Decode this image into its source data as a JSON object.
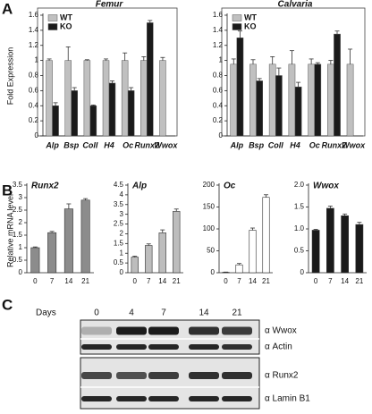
{
  "panel_labels": [
    "A",
    "B",
    "C"
  ],
  "chart_data": [
    {
      "type": "bar",
      "title": "Femur",
      "ylabel": "Fold Expression",
      "frame": true,
      "legend": "upper left",
      "categories": [
        "Alp",
        "Bsp",
        "ColI",
        "H4",
        "Oc",
        "Runx2",
        "Wwox"
      ],
      "series": [
        {
          "name": "WT",
          "color": "#c0c0c0",
          "values": [
            1,
            1,
            1,
            1,
            1,
            1,
            1
          ],
          "errors": [
            0.02,
            0.18,
            0.01,
            0.02,
            0.1,
            0.05,
            0.04
          ]
        },
        {
          "name": "KO",
          "color": "#1a1a1a",
          "values": [
            0.4,
            0.6,
            0.4,
            0.7,
            0.6,
            1.5,
            null
          ],
          "errors": [
            0.04,
            0.04,
            0.01,
            0.03,
            0.04,
            0.03,
            null
          ]
        }
      ],
      "ylim": [
        0,
        1.6
      ],
      "yticks": [
        0,
        0.2,
        0.4,
        0.6,
        0.8,
        1,
        1.2,
        1.4,
        1.6
      ]
    },
    {
      "type": "bar",
      "title": "Calvaria",
      "frame": true,
      "legend": "upper left",
      "categories": [
        "Alp",
        "Bsp",
        "ColI",
        "H4",
        "Oc",
        "Runx2",
        "Wwox"
      ],
      "series": [
        {
          "name": "WT",
          "color": "#c0c0c0",
          "values": [
            0.95,
            0.95,
            0.95,
            0.95,
            0.95,
            0.95,
            0.95
          ],
          "errors": [
            0.07,
            0.06,
            0.1,
            0.18,
            0.07,
            0.05,
            0.2
          ]
        },
        {
          "name": "KO",
          "color": "#1a1a1a",
          "values": [
            1.3,
            0.73,
            0.8,
            0.65,
            0.95,
            1.35,
            null
          ],
          "errors": [
            0.09,
            0.03,
            0.1,
            0.06,
            0.02,
            0.04,
            null
          ]
        }
      ],
      "ylim": [
        0,
        1.6
      ],
      "yticks": [
        0,
        0.2,
        0.4,
        0.6,
        0.8,
        1,
        1.2,
        1.4,
        1.6
      ]
    },
    {
      "type": "bar",
      "title": "Runx2",
      "ylabel": "Relative mRNA level",
      "categories": [
        "0",
        "7",
        "14",
        "21"
      ],
      "values": [
        1,
        1.6,
        2.55,
        2.9
      ],
      "errors": [
        0.03,
        0.05,
        0.2,
        0.06
      ],
      "color": "#8c8c8c",
      "ylim": [
        0,
        3.5
      ],
      "yticks": [
        0,
        0.5,
        1,
        1.5,
        2,
        2.5,
        3,
        3.5
      ]
    },
    {
      "type": "bar",
      "title": "Alp",
      "categories": [
        "0",
        "7",
        "14",
        "21"
      ],
      "values": [
        0.8,
        1.4,
        2.05,
        3.15
      ],
      "errors": [
        0.05,
        0.08,
        0.15,
        0.12
      ],
      "color": "#bdbdbd",
      "ylim": [
        0,
        4.5
      ],
      "yticks": [
        0,
        0.5,
        1,
        1.5,
        2,
        2.5,
        3,
        3.5,
        4,
        4.5
      ]
    },
    {
      "type": "bar",
      "title": "Oc",
      "categories": [
        "0",
        "7",
        "14",
        "21"
      ],
      "values": [
        1,
        18,
        97,
        172
      ],
      "errors": [
        0.5,
        3,
        5,
        6
      ],
      "color": "#ffffff",
      "ylim": [
        0,
        200
      ],
      "yticks": [
        0,
        50,
        100,
        150,
        200
      ]
    },
    {
      "type": "bar",
      "title": "Wwox",
      "categories": [
        "0",
        "7",
        "14",
        "21"
      ],
      "values": [
        0.97,
        1.47,
        1.3,
        1.1
      ],
      "errors": [
        0.02,
        0.05,
        0.04,
        0.05
      ],
      "color": "#1a1a1a",
      "ylim": [
        0,
        2
      ],
      "yticks": [
        0,
        0.5,
        {
          "value": 1,
          "label": "1.0"
        },
        1.5,
        {
          "value": 2,
          "label": "2.0"
        }
      ]
    }
  ],
  "blot": {
    "days_label": "Days",
    "days": [
      "0",
      "4",
      "7",
      "14",
      "21"
    ],
    "antibodies": [
      "α Wwox",
      "α Actin",
      "α Runx2",
      "α Lamin B1"
    ]
  }
}
